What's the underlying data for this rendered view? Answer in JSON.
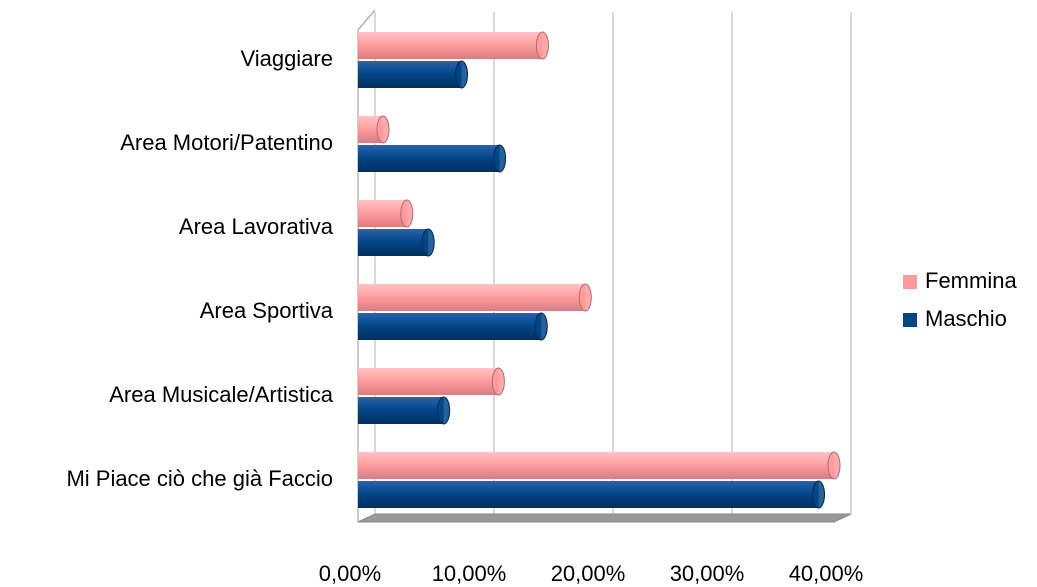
{
  "chart_data": {
    "type": "bar",
    "orientation": "horizontal",
    "categories": [
      "Viaggiare",
      "Area Motori/Patentino",
      "Area Lavorativa",
      "Area Sportiva",
      "Area Musicale/Artistica",
      "Mi Piace ciò che già Faccio"
    ],
    "series": [
      {
        "name": "Femmina",
        "color": "#ff9a9e",
        "values": [
          15.5,
          2.1,
          4.1,
          19.1,
          11.8,
          40.0
        ]
      },
      {
        "name": "Maschio",
        "color": "#004586",
        "values": [
          8.7,
          11.9,
          5.9,
          15.4,
          7.2,
          38.7
        ]
      }
    ],
    "xlim": [
      0,
      40
    ],
    "xticks": [
      {
        "value": 0,
        "label": "0,00%"
      },
      {
        "value": 10,
        "label": "10,00%"
      },
      {
        "value": 20,
        "label": "20,00%"
      },
      {
        "value": 30,
        "label": "30,00%"
      },
      {
        "value": 40,
        "label": "40,00%"
      }
    ],
    "grid": true,
    "legend": "right"
  }
}
